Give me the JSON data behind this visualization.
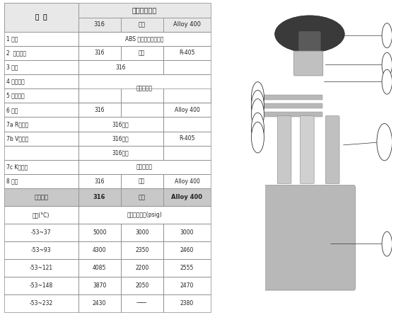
{
  "title": "针阀母体材料",
  "col_header": [
    "零  件",
    "316",
    "黄铜",
    "Alloy 400"
  ],
  "rows": [
    {
      "label": "1 手柄",
      "values": [
        "ABS 固料（黄铜内套）",
        "",
        ""
      ]
    },
    {
      "label": "2  锁紧螺帽",
      "values": [
        "316",
        "黄铜",
        "R-405"
      ]
    },
    {
      "label": "3 垫圈",
      "values": [
        "316",
        "",
        ""
      ]
    },
    {
      "label": "4 上密封垫",
      "values": [
        "聚四氟乙烯",
        "",
        ""
      ]
    },
    {
      "label": "5 下密封垫",
      "values": [
        "",
        "",
        ""
      ]
    },
    {
      "label": "6 垫圈",
      "values": [
        "316",
        "",
        "Alloy 400"
      ]
    },
    {
      "label": "7a R型阀杆",
      "values": [
        "316镀铬",
        "",
        ""
      ]
    },
    {
      "label": "7b V型阀杆",
      "values": [
        "316镀铬",
        "",
        "R-405"
      ]
    },
    {
      "label": "",
      "values": [
        "316镀铬",
        "",
        ""
      ]
    },
    {
      "label": "7c K型阀杆",
      "values": [
        "聚三氟乙烯",
        "",
        ""
      ]
    },
    {
      "label": "8 阀体",
      "values": [
        "316",
        "黄铜",
        "Alloy 400"
      ]
    }
  ],
  "lower_header": [
    "母体材料",
    "316",
    "黄铜",
    "Alloy 400"
  ],
  "lower_subheader": [
    "温度(°C)",
    "最大使用压力(psig)",
    "",
    ""
  ],
  "lower_rows": [
    [
      "-53~37",
      "5000",
      "3000",
      "3000"
    ],
    [
      "-53~93",
      "4300",
      "2350",
      "2460"
    ],
    [
      "-53~121",
      "4085",
      "2200",
      "2555"
    ],
    [
      "-53~148",
      "3870",
      "2050",
      "2470"
    ],
    [
      "-53~232",
      "2430",
      "——",
      "2380"
    ]
  ],
  "bg_color": "#ffffff",
  "header_bg": "#e8e8e8",
  "border_color": "#888888",
  "text_color": "#222222",
  "lower_header_bg": "#d0d0d0"
}
